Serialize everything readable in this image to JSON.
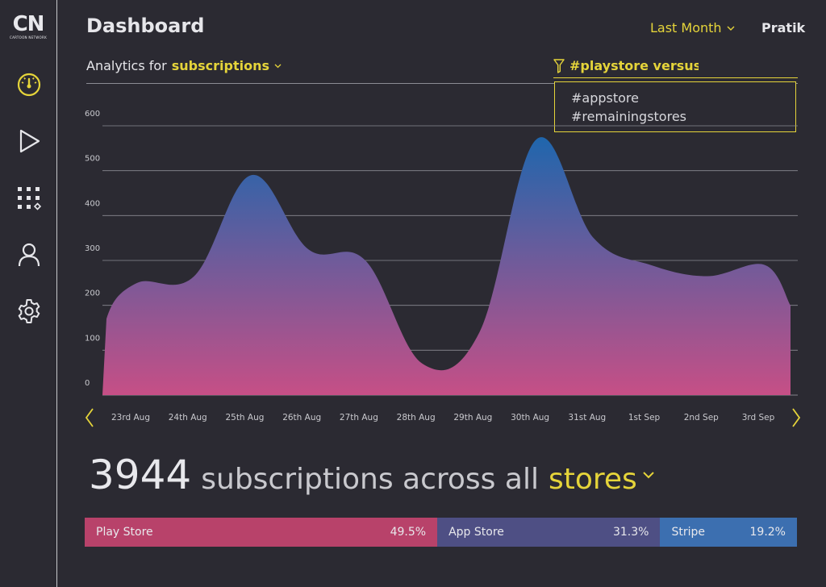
{
  "app": {
    "logo_text": "CN",
    "logo_subtext": "CARTOON NETWORK"
  },
  "sidebar": {
    "items": [
      {
        "icon": "speedometer-icon",
        "active": true
      },
      {
        "icon": "play-icon",
        "active": false
      },
      {
        "icon": "apps-grid-icon",
        "active": false
      },
      {
        "icon": "user-icon",
        "active": false
      },
      {
        "icon": "gear-icon",
        "active": false
      }
    ]
  },
  "header": {
    "title": "Dashboard",
    "period": "Last Month",
    "user": "Pratik"
  },
  "analytics": {
    "prefix": "Analytics for",
    "metric": "subscriptions"
  },
  "filter": {
    "value": "#playstore versus #",
    "options": [
      "#appstore",
      "#remainingstores"
    ]
  },
  "chart_data": {
    "type": "area",
    "categories": [
      "23rd Aug",
      "24th Aug",
      "25th Aug",
      "26th Aug",
      "27th Aug",
      "28th Aug",
      "29th Aug",
      "30th Aug",
      "31st Aug",
      "1st Sep",
      "2nd Sep",
      "3rd Sep"
    ],
    "values": [
      250,
      265,
      490,
      325,
      300,
      70,
      140,
      570,
      350,
      290,
      265,
      290
    ],
    "ylim": [
      0,
      600
    ],
    "yticks": [
      0,
      100,
      200,
      300,
      400,
      500,
      600
    ],
    "grid": true,
    "colors": {
      "top": "#1f66ad",
      "bottom": "#c64f86"
    }
  },
  "summary": {
    "count": "3944",
    "text": "subscriptions across all",
    "store_word": "stores"
  },
  "shares": [
    {
      "label": "Play Store",
      "value": "49.5%",
      "fraction": 0.495,
      "color": "#b8426a"
    },
    {
      "label": "App Store",
      "value": "31.3%",
      "fraction": 0.313,
      "color": "#4e4f84"
    },
    {
      "label": "Stripe",
      "value": "19.2%",
      "fraction": 0.192,
      "color": "#3c6fb0"
    }
  ],
  "colors": {
    "accent": "#e5d43a",
    "background": "#2b2a32"
  }
}
